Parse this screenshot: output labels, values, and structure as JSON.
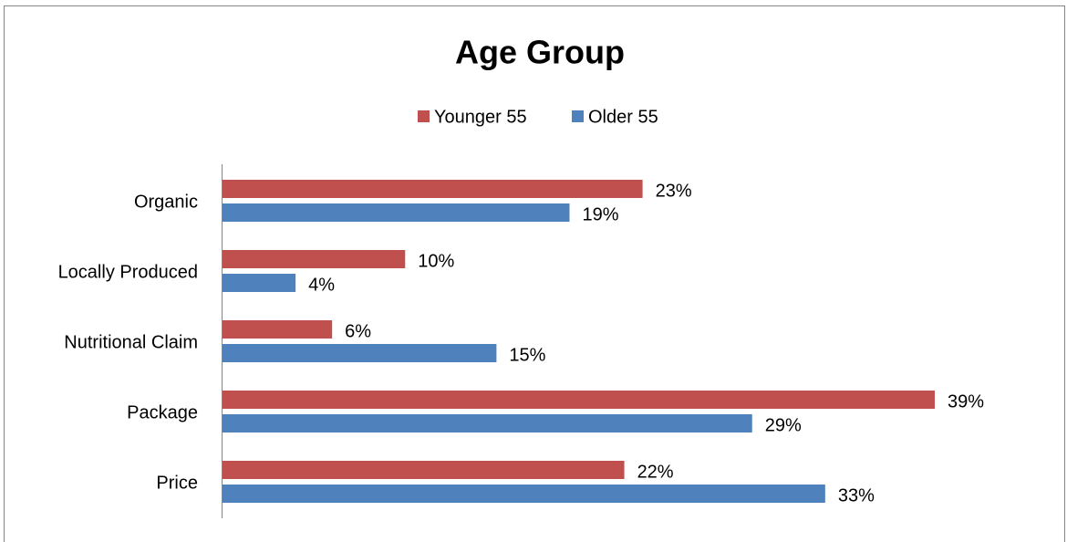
{
  "chart_data": {
    "type": "hbar",
    "title": "Age Group",
    "categories": [
      "Organic",
      "Locally Produced",
      "Nutritional Claim",
      "Package",
      "Price"
    ],
    "series": [
      {
        "name": "Younger 55",
        "color": "#c0504d",
        "values": [
          23,
          10,
          6,
          39,
          22
        ],
        "value_labels": [
          "23%",
          "10%",
          "6%",
          "39%",
          "22%"
        ]
      },
      {
        "name": "Older 55",
        "color": "#4f81bd",
        "values": [
          19,
          4,
          15,
          29,
          33
        ],
        "value_labels": [
          "19%",
          "4%",
          "15%",
          "29%",
          "33%"
        ]
      }
    ],
    "legend": "top"
  }
}
